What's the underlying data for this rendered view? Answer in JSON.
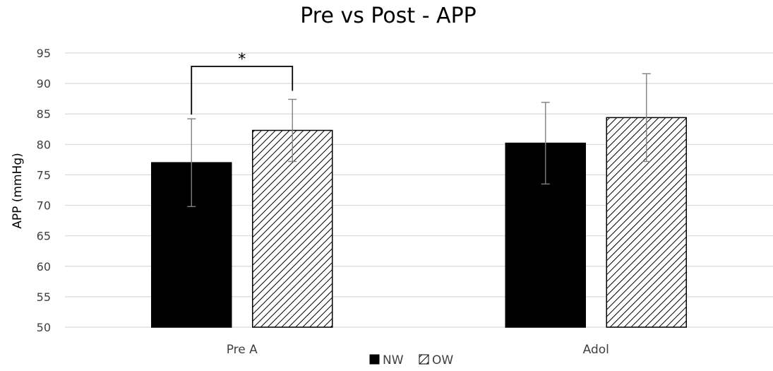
{
  "chart_data": {
    "type": "bar",
    "title": "Pre vs Post - APP",
    "ylabel": "APP (mmHg)",
    "xlabel": "",
    "categories": [
      "Pre A",
      "Adol"
    ],
    "ylim": [
      50,
      95
    ],
    "yticks": [
      50,
      55,
      60,
      65,
      70,
      75,
      80,
      85,
      90,
      95
    ],
    "grid": true,
    "legend_position": "bottom",
    "series": [
      {
        "name": "NW",
        "values": [
          77.0,
          80.2
        ],
        "errors": [
          7.2,
          6.7
        ],
        "color": "#000000",
        "fill": "solid"
      },
      {
        "name": "OW",
        "values": [
          82.3,
          84.4
        ],
        "errors": [
          5.1,
          7.2
        ],
        "color": "#000000",
        "fill": "diagonal-hatch"
      }
    ],
    "annotations": [
      {
        "text": "*",
        "type": "significance-bracket",
        "category": "Pre A",
        "between_series": [
          "NW",
          "OW"
        ]
      }
    ]
  }
}
